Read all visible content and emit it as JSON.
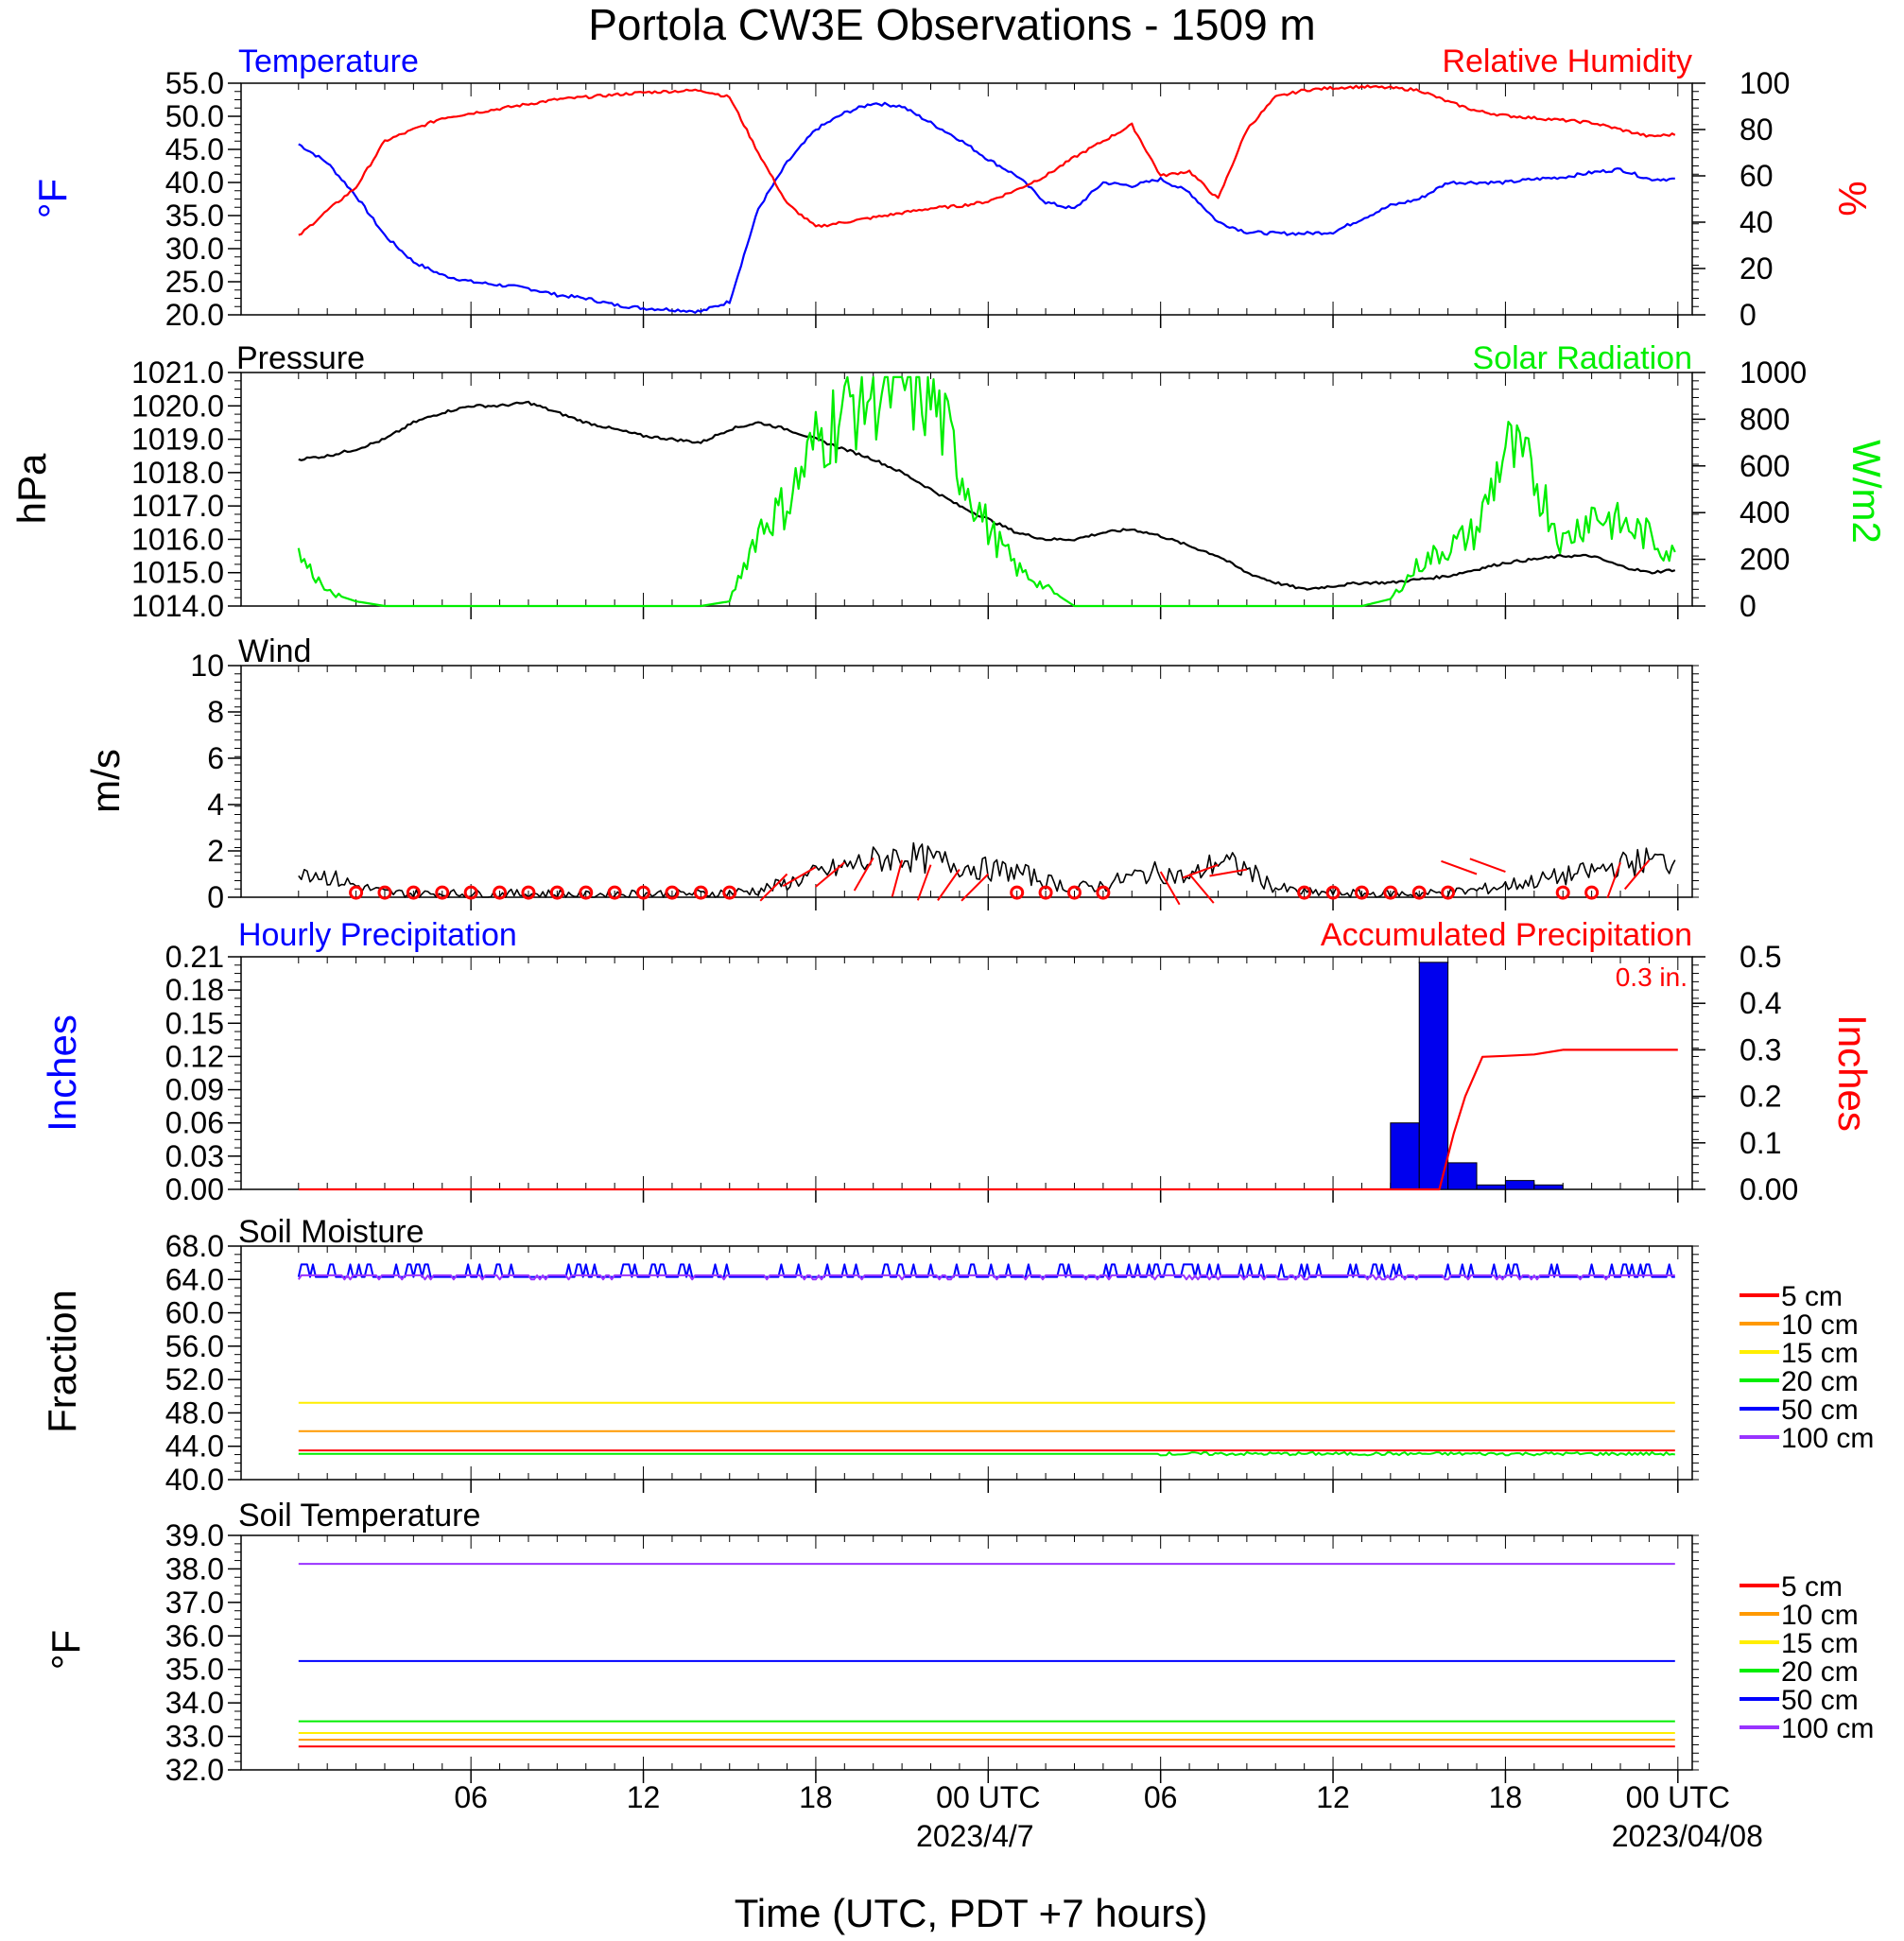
{
  "figure": {
    "title": "Portola CW3E Observations - 1509 m",
    "x_axis_title": "Time (UTC, PDT +7 hours)",
    "x_ticks": [
      "06",
      "12",
      "18",
      "00 UTC",
      "06",
      "12",
      "18",
      "00 UTC"
    ],
    "x_dates": [
      "2023/4/7",
      "2023/04/08"
    ]
  },
  "chart_data": [
    {
      "id": "temp_rh",
      "type": "line",
      "title_left": "Temperature",
      "title_right": "Relative Humidity",
      "ylabel_left": "°F",
      "ylabel_right": "%",
      "ylim_left": [
        20,
        55
      ],
      "ylim_right": [
        0,
        100
      ],
      "ticks_left": [
        "55.0",
        "50.0",
        "45.0",
        "40.0",
        "35.0",
        "30.0",
        "25.0",
        "20.0"
      ],
      "ticks_right": [
        "100",
        "80",
        "60",
        "40",
        "20",
        "0"
      ],
      "x_hours": [
        0,
        1,
        2,
        3,
        4,
        5,
        6,
        7,
        8,
        9,
        10,
        11,
        12,
        13,
        14,
        15,
        16,
        17,
        18,
        19,
        20,
        21,
        22,
        23,
        24,
        25,
        26,
        27,
        28,
        29,
        30,
        31,
        32,
        33,
        34,
        35,
        36,
        37,
        38,
        39,
        40,
        41,
        42,
        43,
        44,
        45,
        46,
        47,
        48
      ],
      "series": [
        {
          "name": "Temperature",
          "color": "#0000ff",
          "axis": "left",
          "values": [
            45.8,
            43,
            38,
            32,
            28,
            26,
            25,
            24.5,
            24,
            23,
            22.5,
            21.5,
            21,
            20.8,
            20.5,
            22,
            36,
            43,
            48,
            50.5,
            52,
            51.5,
            49,
            46.5,
            43.5,
            41,
            37,
            36,
            40,
            39.5,
            40.5,
            38.5,
            34,
            32.5,
            32.3,
            32.3,
            32.5,
            34.5,
            36.5,
            37.5,
            40,
            40,
            40,
            40.5,
            40.8,
            41.5,
            42,
            40.5,
            40.5
          ]
        },
        {
          "name": "Relative Humidity",
          "color": "#ff0000",
          "axis": "right",
          "values": [
            34,
            45,
            55,
            75,
            80,
            85,
            87,
            89,
            91,
            93,
            94,
            95,
            96,
            96.5,
            97,
            94,
            70,
            48,
            38,
            40,
            42,
            44,
            46,
            47,
            49,
            54,
            60,
            68,
            75,
            82,
            60,
            62,
            50,
            80,
            94,
            97,
            98,
            98.5,
            98,
            97,
            92,
            88,
            86,
            85,
            84,
            83,
            80,
            77,
            78
          ]
        }
      ]
    },
    {
      "id": "pressure_solar",
      "type": "line",
      "title_left": "Pressure",
      "title_right": "Solar Radiation",
      "ylabel_left": "hPa",
      "ylabel_right": "W/m2",
      "ylim_left": [
        1014,
        1021
      ],
      "ylim_right": [
        0,
        1000
      ],
      "ticks_left": [
        "1021.0",
        "1020.0",
        "1019.0",
        "1018.0",
        "1017.0",
        "1016.0",
        "1015.0",
        "1014.0"
      ],
      "ticks_right": [
        "1000",
        "800",
        "600",
        "400",
        "200",
        "0"
      ],
      "x_hours": [
        0,
        1,
        2,
        3,
        4,
        5,
        6,
        7,
        8,
        9,
        10,
        11,
        12,
        13,
        14,
        15,
        16,
        17,
        18,
        19,
        20,
        21,
        22,
        23,
        24,
        25,
        26,
        27,
        28,
        29,
        30,
        31,
        32,
        33,
        34,
        35,
        36,
        37,
        38,
        39,
        40,
        41,
        42,
        43,
        44,
        45,
        46,
        47,
        48
      ],
      "series": [
        {
          "name": "Pressure",
          "color": "#000000",
          "axis": "left",
          "values": [
            1018.4,
            1018.5,
            1018.7,
            1019.0,
            1019.5,
            1019.8,
            1020.0,
            1020.0,
            1020.1,
            1019.8,
            1019.5,
            1019.3,
            1019.1,
            1019.0,
            1018.9,
            1019.3,
            1019.5,
            1019.3,
            1019.0,
            1018.7,
            1018.4,
            1018.0,
            1017.5,
            1017.0,
            1016.6,
            1016.2,
            1016.0,
            1016.0,
            1016.2,
            1016.3,
            1016.1,
            1015.8,
            1015.5,
            1015.0,
            1014.7,
            1014.5,
            1014.6,
            1014.7,
            1014.7,
            1014.8,
            1014.9,
            1015.1,
            1015.3,
            1015.4,
            1015.5,
            1015.5,
            1015.2,
            1015.0,
            1015.1
          ]
        },
        {
          "name": "Solar Radiation",
          "color": "#00ee00",
          "axis": "right",
          "values": [
            220,
            60,
            20,
            0,
            0,
            0,
            0,
            0,
            0,
            0,
            0,
            0,
            0,
            0,
            0,
            20,
            330,
            440,
            700,
            850,
            930,
            950,
            900,
            600,
            330,
            160,
            80,
            0,
            0,
            0,
            0,
            0,
            0,
            0,
            0,
            0,
            0,
            0,
            30,
            180,
            250,
            320,
            680,
            560,
            270,
            400,
            350,
            300,
            200
          ]
        }
      ]
    },
    {
      "id": "wind",
      "type": "line",
      "title_left": "Wind",
      "ylabel_left": "m/s",
      "ylim_left": [
        0,
        10
      ],
      "ticks_left": [
        "10",
        "8",
        "6",
        "4",
        "2",
        "0"
      ],
      "x_hours": [
        0,
        1,
        2,
        3,
        4,
        5,
        6,
        7,
        8,
        9,
        10,
        11,
        12,
        13,
        14,
        15,
        16,
        17,
        18,
        19,
        20,
        21,
        22,
        23,
        24,
        25,
        26,
        27,
        28,
        29,
        30,
        31,
        32,
        33,
        34,
        35,
        36,
        37,
        38,
        39,
        40,
        41,
        42,
        43,
        44,
        45,
        46,
        47,
        48
      ],
      "series": [
        {
          "name": "Wind speed",
          "color": "#000000",
          "axis": "left",
          "values": [
            1.3,
            0.9,
            0.5,
            0.2,
            0.15,
            0.15,
            0.15,
            0.15,
            0.15,
            0.15,
            0.1,
            0.15,
            0.15,
            0.15,
            0.15,
            0.2,
            0.3,
            0.6,
            1.0,
            1.3,
            1.6,
            1.8,
            1.6,
            1.4,
            1.2,
            1.1,
            0.7,
            0.4,
            0.5,
            0.9,
            1.1,
            0.8,
            1.6,
            1.2,
            0.4,
            0.2,
            0.2,
            0.15,
            0.15,
            0.15,
            0.2,
            0.3,
            0.5,
            0.7,
            0.9,
            1.1,
            1.4,
            1.6,
            1.5
          ]
        }
      ],
      "calm_markers_hours": [
        2,
        3,
        4,
        5,
        6,
        7,
        8,
        9,
        10,
        11,
        12,
        13,
        14,
        15,
        25,
        26,
        27,
        28,
        35,
        36,
        37,
        38,
        39,
        40,
        44,
        45
      ],
      "barbs": [
        {
          "hour": 17,
          "dir_deg": 225,
          "speed": 1.0
        },
        {
          "hour": 18,
          "dir_deg": 240,
          "speed": 1.3
        },
        {
          "hour": 19,
          "dir_deg": 230,
          "speed": 1.5
        },
        {
          "hour": 20,
          "dir_deg": 210,
          "speed": 1.7
        },
        {
          "hour": 21,
          "dir_deg": 195,
          "speed": 1.6
        },
        {
          "hour": 22,
          "dir_deg": 200,
          "speed": 1.4
        },
        {
          "hour": 23,
          "dir_deg": 215,
          "speed": 1.2
        },
        {
          "hour": 24,
          "dir_deg": 225,
          "speed": 1.0
        },
        {
          "hour": 30,
          "dir_deg": 150,
          "speed": 1.1
        },
        {
          "hour": 31,
          "dir_deg": 140,
          "speed": 1.0
        },
        {
          "hour": 32,
          "dir_deg": 250,
          "speed": 1.4
        },
        {
          "hour": 33,
          "dir_deg": 260,
          "speed": 1.2
        },
        {
          "hour": 41,
          "dir_deg": 290,
          "speed": 1.0
        },
        {
          "hour": 42,
          "dir_deg": 290,
          "speed": 1.1
        },
        {
          "hour": 46,
          "dir_deg": 200,
          "speed": 1.5
        },
        {
          "hour": 47,
          "dir_deg": 220,
          "speed": 1.6
        }
      ]
    },
    {
      "id": "precip",
      "type": "bar",
      "title_left": "Hourly Precipitation",
      "title_right": "Accumulated Precipitation",
      "annotation": "0.3 in.",
      "ylabel_left": "Inches",
      "ylabel_right": "Inches",
      "ylim_left": [
        0,
        0.21
      ],
      "ylim_right": [
        0,
        0.5
      ],
      "ticks_left": [
        "0.21",
        "0.18",
        "0.15",
        "0.12",
        "0.09",
        "0.06",
        "0.03",
        "0.00"
      ],
      "ticks_right": [
        "0.5",
        "0.4",
        "0.3",
        "0.2",
        "0.1",
        "0.00"
      ],
      "hourly_bars": [
        {
          "hour": 39,
          "value": 0.06
        },
        {
          "hour": 40,
          "value": 0.205
        },
        {
          "hour": 41,
          "value": 0.024
        },
        {
          "hour": 42,
          "value": 0.004
        },
        {
          "hour": 43,
          "value": 0.008
        },
        {
          "hour": 44,
          "value": 0.004
        }
      ],
      "accumulated": {
        "name": "Accumulated Precipitation",
        "color": "#ff0000",
        "x_hours": [
          0,
          39.7,
          40.2,
          40.6,
          41.2,
          42,
          43,
          44,
          45,
          48
        ],
        "values": [
          0,
          0,
          0.12,
          0.2,
          0.285,
          0.287,
          0.29,
          0.3,
          0.3,
          0.3
        ]
      }
    },
    {
      "id": "soil_moisture",
      "type": "line",
      "title_left": "Soil Moisture",
      "ylabel_left": "Fraction",
      "ylim_left": [
        40,
        68
      ],
      "ticks_left": [
        "68.0",
        "64.0",
        "60.0",
        "56.0",
        "52.0",
        "48.0",
        "44.0",
        "40.0"
      ],
      "series": [
        {
          "name": "5 cm",
          "color": "#ff0000",
          "value": 43.5
        },
        {
          "name": "10 cm",
          "color": "#ff9900",
          "value": 45.8
        },
        {
          "name": "15 cm",
          "color": "#ffee00",
          "value": 49.2
        },
        {
          "name": "20 cm",
          "color": "#00ee00",
          "value": 43.1
        },
        {
          "name": "50 cm",
          "color": "#0000ff",
          "value": 65.8
        },
        {
          "name": "100 cm",
          "color": "#9933ff",
          "value": 64.0
        }
      ]
    },
    {
      "id": "soil_temperature",
      "type": "line",
      "title_left": "Soil Temperature",
      "ylabel_left": "°F",
      "ylim_left": [
        32,
        39
      ],
      "ticks_left": [
        "39.0",
        "38.0",
        "37.0",
        "36.0",
        "35.0",
        "34.0",
        "33.0",
        "32.0"
      ],
      "series": [
        {
          "name": "5 cm",
          "color": "#ff0000",
          "value": 32.7
        },
        {
          "name": "10 cm",
          "color": "#ff9900",
          "value": 32.9
        },
        {
          "name": "15 cm",
          "color": "#ffee00",
          "value": 33.1
        },
        {
          "name": "20 cm",
          "color": "#00ee00",
          "value": 33.45
        },
        {
          "name": "50 cm",
          "color": "#0000ff",
          "value": 35.25
        },
        {
          "name": "100 cm",
          "color": "#9933ff",
          "value": 38.15
        }
      ]
    }
  ]
}
